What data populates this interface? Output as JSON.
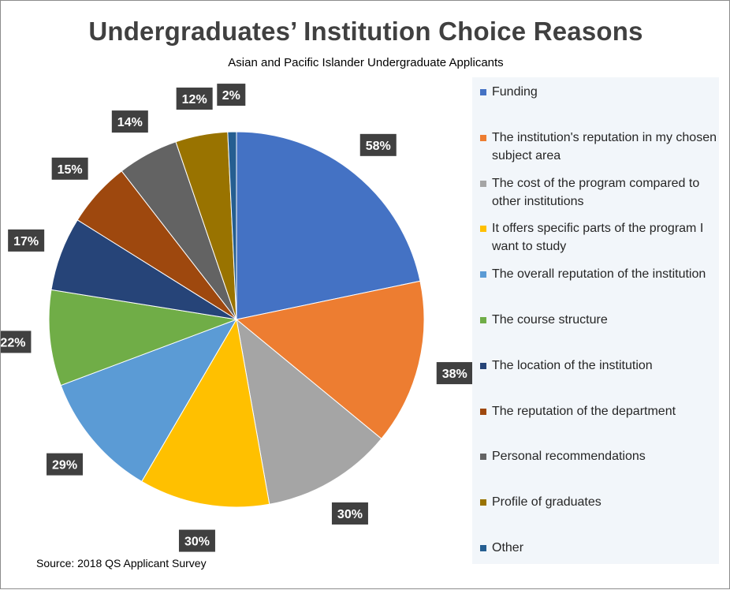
{
  "chart_data": {
    "type": "pie",
    "title": "Undergraduates’ Institution Choice Reasons",
    "subtitle": "Asian and Pacific Islander Undergraduate Applicants",
    "source": "Source: 2018 QS Applicant Survey",
    "legend_position": "right",
    "slices": [
      {
        "label": "Funding",
        "value": 58,
        "value_label": "58%",
        "color": "#4472c4"
      },
      {
        "label": "The institution's reputation in my chosen subject area",
        "value": 38,
        "value_label": "38%",
        "color": "#ed7d31"
      },
      {
        "label": "The cost of the program compared to other institutions",
        "value": 30,
        "value_label": "30%",
        "color": "#a5a5a5"
      },
      {
        "label": "It offers specific parts of the program I want to study",
        "value": 30,
        "value_label": "30%",
        "color": "#ffc000"
      },
      {
        "label": "The overall reputation of the institution",
        "value": 29,
        "value_label": "29%",
        "color": "#5b9bd5"
      },
      {
        "label": "The course structure",
        "value": 22,
        "value_label": "22%",
        "color": "#70ad47"
      },
      {
        "label": "The location of the institution",
        "value": 17,
        "value_label": "17%",
        "color": "#264478"
      },
      {
        "label": "The reputation of the department",
        "value": 15,
        "value_label": "15%",
        "color": "#9e480e"
      },
      {
        "label": "Personal recommendations",
        "value": 14,
        "value_label": "14%",
        "color": "#636363"
      },
      {
        "label": "Profile of graduates",
        "value": 12,
        "value_label": "12%",
        "color": "#997300"
      },
      {
        "label": "Other",
        "value": 2,
        "value_label": "2%",
        "color": "#255e91"
      }
    ]
  }
}
